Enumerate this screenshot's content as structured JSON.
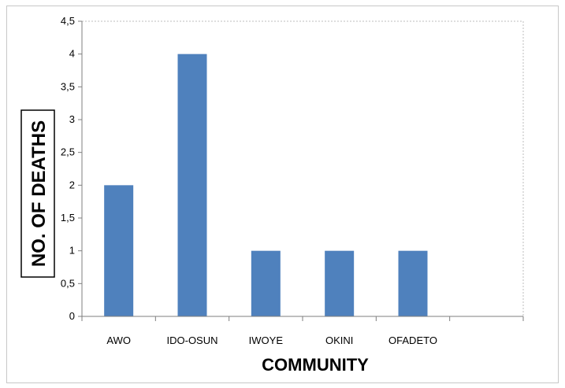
{
  "chart_data": {
    "type": "bar",
    "categories": [
      "AWO",
      "IDO-OSUN",
      "IWOYE",
      "OKINI",
      "OFADETO",
      ""
    ],
    "values": [
      2,
      4,
      1,
      1,
      1,
      null
    ],
    "title": "",
    "xlabel": "COMMUNITY",
    "ylabel": "NO. OF DEATHS",
    "ylim": [
      0,
      4.5
    ],
    "yticks": [
      "0",
      "0,5",
      "1",
      "1,5",
      "2",
      "2,5",
      "3",
      "3,5",
      "4",
      "4,5"
    ],
    "grid": false,
    "legend": "none",
    "bar_color": "#4f81bd"
  }
}
